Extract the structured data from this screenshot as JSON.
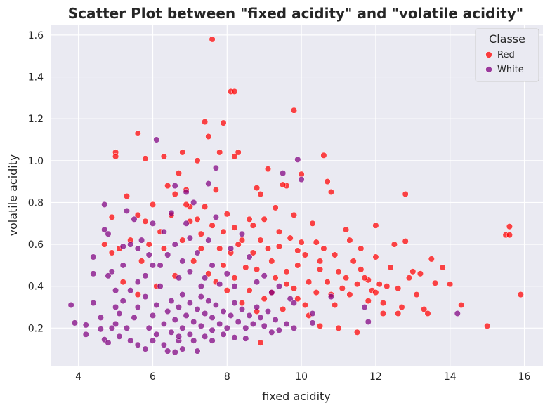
{
  "chart_data": {
    "type": "scatter",
    "title": "Scatter Plot between \"fixed acidity\" and \"volatile acidity\"",
    "xlabel": "fixed acidity",
    "ylabel": "volatile acidity",
    "xlim": [
      3.25,
      16.5
    ],
    "ylim": [
      0.02,
      1.65
    ],
    "xticks": [
      4,
      6,
      8,
      10,
      12,
      14,
      16
    ],
    "yticks": [
      0.2,
      0.4,
      0.6,
      0.8,
      1.0,
      1.2,
      1.4,
      1.6
    ],
    "ytick_labels": [
      "0.2",
      "0.4",
      "0.6",
      "0.8",
      "1.0",
      "1.2",
      "1.4",
      "1.6"
    ],
    "grid": true,
    "background": "#eaeaf2",
    "legend": {
      "title": "Classe",
      "placement": "top-right"
    },
    "series": [
      {
        "name": "Red",
        "color": "#ff0000",
        "points": [
          [
            7.6,
            1.58
          ],
          [
            8.1,
            1.33
          ],
          [
            8.2,
            1.33
          ],
          [
            9.8,
            1.24
          ],
          [
            7.4,
            1.185
          ],
          [
            7.5,
            1.115
          ],
          [
            5.6,
            1.13
          ],
          [
            7.9,
            1.18
          ],
          [
            5.0,
            1.04
          ],
          [
            5.0,
            1.02
          ],
          [
            5.8,
            1.01
          ],
          [
            6.3,
            1.02
          ],
          [
            8.3,
            1.04
          ],
          [
            8.2,
            1.02
          ],
          [
            7.2,
            1.0
          ],
          [
            6.8,
            1.04
          ],
          [
            9.1,
            0.96
          ],
          [
            10.6,
            1.025
          ],
          [
            10.0,
            0.935
          ],
          [
            10.7,
            0.9
          ],
          [
            7.8,
            1.04
          ],
          [
            15.0,
            0.21
          ],
          [
            15.9,
            0.36
          ],
          [
            15.5,
            0.645
          ],
          [
            15.6,
            0.645
          ],
          [
            15.6,
            0.685
          ],
          [
            14.3,
            0.31
          ],
          [
            13.8,
            0.49
          ],
          [
            13.5,
            0.53
          ],
          [
            14.0,
            0.41
          ],
          [
            12.8,
            0.84
          ],
          [
            12.8,
            0.615
          ],
          [
            12.0,
            0.69
          ],
          [
            12.5,
            0.6
          ],
          [
            12.0,
            0.54
          ],
          [
            11.6,
            0.58
          ],
          [
            11.2,
            0.67
          ],
          [
            13.0,
            0.47
          ],
          [
            13.2,
            0.46
          ],
          [
            13.3,
            0.29
          ],
          [
            13.4,
            0.27
          ],
          [
            12.6,
            0.27
          ],
          [
            12.2,
            0.27
          ],
          [
            11.5,
            0.18
          ],
          [
            11.0,
            0.2
          ],
          [
            11.8,
            0.33
          ],
          [
            12.7,
            0.3
          ],
          [
            13.6,
            0.415
          ],
          [
            12.3,
            0.4
          ],
          [
            11.1,
            0.39
          ],
          [
            10.5,
            0.21
          ],
          [
            10.1,
            0.31
          ],
          [
            11.9,
            0.38
          ],
          [
            12.4,
            0.49
          ],
          [
            10.4,
            0.61
          ],
          [
            11.3,
            0.62
          ],
          [
            9.9,
            0.57
          ],
          [
            9.6,
            0.88
          ],
          [
            9.5,
            0.885
          ],
          [
            10.8,
            0.85
          ],
          [
            9.3,
            0.775
          ],
          [
            8.9,
            0.84
          ],
          [
            8.8,
            0.87
          ],
          [
            7.3,
            0.65
          ],
          [
            7.8,
            0.58
          ],
          [
            8.5,
            0.49
          ],
          [
            8.9,
            0.62
          ],
          [
            9.2,
            0.52
          ],
          [
            9.4,
            0.59
          ],
          [
            9.6,
            0.41
          ],
          [
            9.9,
            0.5
          ],
          [
            10.2,
            0.42
          ],
          [
            10.5,
            0.48
          ],
          [
            10.8,
            0.36
          ],
          [
            11.2,
            0.44
          ],
          [
            11.6,
            0.48
          ],
          [
            12.0,
            0.37
          ],
          [
            12.6,
            0.39
          ],
          [
            13.1,
            0.36
          ],
          [
            8.1,
            0.56
          ],
          [
            8.4,
            0.62
          ],
          [
            8.7,
            0.69
          ],
          [
            9.0,
            0.72
          ],
          [
            9.4,
            0.66
          ],
          [
            9.8,
            0.74
          ],
          [
            10.3,
            0.7
          ],
          [
            10.9,
            0.55
          ],
          [
            11.4,
            0.52
          ],
          [
            11.8,
            0.43
          ],
          [
            8.0,
            0.745
          ],
          [
            8.6,
            0.72
          ],
          [
            9.1,
            0.58
          ],
          [
            9.7,
            0.63
          ],
          [
            10.1,
            0.55
          ],
          [
            10.6,
            0.58
          ],
          [
            11.0,
            0.47
          ],
          [
            11.5,
            0.41
          ],
          [
            12.2,
            0.32
          ],
          [
            7.0,
            0.78
          ],
          [
            7.2,
            0.72
          ],
          [
            7.6,
            0.69
          ],
          [
            7.9,
            0.66
          ],
          [
            8.3,
            0.6
          ],
          [
            8.8,
            0.48
          ],
          [
            9.3,
            0.44
          ],
          [
            9.8,
            0.39
          ],
          [
            10.4,
            0.37
          ],
          [
            10.9,
            0.31
          ],
          [
            6.4,
            0.88
          ],
          [
            6.6,
            0.84
          ],
          [
            6.9,
            0.79
          ],
          [
            6.2,
            0.66
          ],
          [
            5.9,
            0.6
          ],
          [
            5.6,
            0.74
          ],
          [
            5.3,
            0.83
          ],
          [
            5.4,
            0.62
          ],
          [
            5.1,
            0.58
          ],
          [
            4.9,
            0.73
          ],
          [
            4.9,
            0.56
          ],
          [
            4.7,
            0.6
          ],
          [
            5.2,
            0.42
          ],
          [
            5.6,
            0.36
          ],
          [
            6.1,
            0.4
          ],
          [
            6.6,
            0.45
          ],
          [
            7.1,
            0.52
          ],
          [
            7.5,
            0.46
          ],
          [
            7.9,
            0.5
          ],
          [
            8.2,
            0.44
          ],
          [
            8.6,
            0.38
          ],
          [
            9.0,
            0.34
          ],
          [
            9.5,
            0.29
          ],
          [
            8.0,
            0.38
          ],
          [
            8.4,
            0.32
          ],
          [
            8.8,
            0.28
          ],
          [
            7.7,
            0.42
          ],
          [
            7.3,
            0.58
          ],
          [
            6.8,
            0.62
          ],
          [
            6.5,
            0.74
          ],
          [
            6.0,
            0.79
          ],
          [
            5.8,
            0.71
          ],
          [
            8.9,
            0.13
          ],
          [
            9.9,
            0.34
          ],
          [
            10.2,
            0.26
          ],
          [
            10.7,
            0.42
          ],
          [
            11.3,
            0.36
          ],
          [
            12.1,
            0.41
          ],
          [
            9.2,
            0.37
          ],
          [
            8.7,
            0.56
          ],
          [
            8.2,
            0.68
          ],
          [
            7.4,
            0.78
          ],
          [
            7.7,
            0.86
          ],
          [
            6.7,
            0.94
          ],
          [
            6.9,
            0.86
          ],
          [
            7.0,
            0.71
          ],
          [
            6.3,
            0.58
          ],
          [
            5.7,
            0.52
          ],
          [
            9.6,
            0.47
          ],
          [
            10.0,
            0.61
          ],
          [
            10.5,
            0.52
          ],
          [
            11.7,
            0.44
          ],
          [
            12.9,
            0.44
          ]
        ]
      },
      {
        "name": "White",
        "color": "#800080",
        "points": [
          [
            3.8,
            0.31
          ],
          [
            3.9,
            0.225
          ],
          [
            4.2,
            0.17
          ],
          [
            4.2,
            0.215
          ],
          [
            4.4,
            0.32
          ],
          [
            4.4,
            0.46
          ],
          [
            4.4,
            0.54
          ],
          [
            4.6,
            0.195
          ],
          [
            4.7,
            0.145
          ],
          [
            4.8,
            0.13
          ],
          [
            4.7,
            0.79
          ],
          [
            4.7,
            0.67
          ],
          [
            4.8,
            0.65
          ],
          [
            4.8,
            0.45
          ],
          [
            4.9,
            0.47
          ],
          [
            5.0,
            0.38
          ],
          [
            5.2,
            0.5
          ],
          [
            5.3,
            0.76
          ],
          [
            5.2,
            0.59
          ],
          [
            5.4,
            0.6
          ],
          [
            5.5,
            0.72
          ],
          [
            5.6,
            0.58
          ],
          [
            6.1,
            1.1
          ],
          [
            6.6,
            0.88
          ],
          [
            6.9,
            0.85
          ],
          [
            7.5,
            0.89
          ],
          [
            7.7,
            0.965
          ],
          [
            9.5,
            0.94
          ],
          [
            9.9,
            1.005
          ],
          [
            10.0,
            0.91
          ],
          [
            14.2,
            0.27
          ],
          [
            11.8,
            0.23
          ],
          [
            10.3,
            0.27
          ],
          [
            10.3,
            0.225
          ],
          [
            9.8,
            0.2
          ],
          [
            9.4,
            0.19
          ],
          [
            9.2,
            0.18
          ],
          [
            8.2,
            0.155
          ],
          [
            7.6,
            0.14
          ],
          [
            7.1,
            0.14
          ],
          [
            6.7,
            0.14
          ],
          [
            6.4,
            0.09
          ],
          [
            6.6,
            0.085
          ],
          [
            6.8,
            0.1
          ],
          [
            7.2,
            0.09
          ],
          [
            6.3,
            0.12
          ],
          [
            6.0,
            0.14
          ],
          [
            5.8,
            0.1
          ],
          [
            5.6,
            0.12
          ],
          [
            5.4,
            0.14
          ],
          [
            5.1,
            0.16
          ],
          [
            5.0,
            0.22
          ],
          [
            5.1,
            0.27
          ],
          [
            5.2,
            0.33
          ],
          [
            5.3,
            0.2
          ],
          [
            5.5,
            0.25
          ],
          [
            5.6,
            0.3
          ],
          [
            5.8,
            0.35
          ],
          [
            5.9,
            0.2
          ],
          [
            6.0,
            0.26
          ],
          [
            6.1,
            0.31
          ],
          [
            6.2,
            0.4
          ],
          [
            6.3,
            0.22
          ],
          [
            6.4,
            0.28
          ],
          [
            6.5,
            0.33
          ],
          [
            6.5,
            0.18
          ],
          [
            6.6,
            0.24
          ],
          [
            6.7,
            0.3
          ],
          [
            6.8,
            0.36
          ],
          [
            6.8,
            0.2
          ],
          [
            6.9,
            0.26
          ],
          [
            7.0,
            0.32
          ],
          [
            7.0,
            0.17
          ],
          [
            7.1,
            0.23
          ],
          [
            7.2,
            0.29
          ],
          [
            7.3,
            0.35
          ],
          [
            7.3,
            0.21
          ],
          [
            7.4,
            0.27
          ],
          [
            7.5,
            0.33
          ],
          [
            7.6,
            0.19
          ],
          [
            7.6,
            0.25
          ],
          [
            7.7,
            0.31
          ],
          [
            7.8,
            0.22
          ],
          [
            7.9,
            0.28
          ],
          [
            8.0,
            0.2
          ],
          [
            8.1,
            0.26
          ],
          [
            8.2,
            0.32
          ],
          [
            8.3,
            0.23
          ],
          [
            8.4,
            0.29
          ],
          [
            8.5,
            0.2
          ],
          [
            8.6,
            0.26
          ],
          [
            8.7,
            0.22
          ],
          [
            8.8,
            0.3
          ],
          [
            8.9,
            0.25
          ],
          [
            9.0,
            0.21
          ],
          [
            9.1,
            0.28
          ],
          [
            9.3,
            0.24
          ],
          [
            9.6,
            0.22
          ],
          [
            6.2,
            0.5
          ],
          [
            6.4,
            0.55
          ],
          [
            6.6,
            0.6
          ],
          [
            6.8,
            0.52
          ],
          [
            7.0,
            0.47
          ],
          [
            7.2,
            0.56
          ],
          [
            7.4,
            0.44
          ],
          [
            7.6,
            0.5
          ],
          [
            7.8,
            0.41
          ],
          [
            8.0,
            0.46
          ],
          [
            8.2,
            0.4
          ],
          [
            5.8,
            0.45
          ],
          [
            6.0,
            0.5
          ],
          [
            5.6,
            0.42
          ],
          [
            5.4,
            0.38
          ],
          [
            5.7,
            0.62
          ],
          [
            6.3,
            0.66
          ],
          [
            6.9,
            0.7
          ],
          [
            7.5,
            0.62
          ],
          [
            8.1,
            0.58
          ],
          [
            9.7,
            0.34
          ],
          [
            9.2,
            0.37
          ],
          [
            8.8,
            0.42
          ],
          [
            6.1,
            0.17
          ],
          [
            6.7,
            0.16
          ],
          [
            7.4,
            0.16
          ],
          [
            7.9,
            0.17
          ],
          [
            8.5,
            0.15
          ],
          [
            5.0,
            0.3
          ],
          [
            4.9,
            0.2
          ],
          [
            4.6,
            0.25
          ],
          [
            6.0,
            0.7
          ],
          [
            6.5,
            0.75
          ],
          [
            7.1,
            0.8
          ],
          [
            7.7,
            0.73
          ],
          [
            8.4,
            0.65
          ],
          [
            8.6,
            0.54
          ],
          [
            9.0,
            0.45
          ],
          [
            9.4,
            0.4
          ],
          [
            7.0,
            0.63
          ],
          [
            6.7,
            0.44
          ],
          [
            7.3,
            0.4
          ],
          [
            5.9,
            0.55
          ],
          [
            11.7,
            0.3
          ],
          [
            10.8,
            0.35
          ],
          [
            9.8,
            0.32
          ]
        ]
      }
    ]
  }
}
